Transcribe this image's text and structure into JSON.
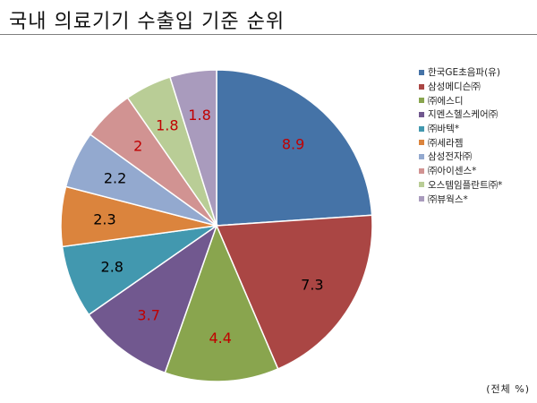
{
  "title": "국내 의료기기 수출입 기준 순위",
  "unit_note": "(전체 %)",
  "chart_data": {
    "type": "pie",
    "title": "",
    "categories": [
      "한국GE초음파(유)",
      "삼성메디슨㈜",
      "㈜에스디",
      "지멘스헬스케어㈜",
      "㈜바텍*",
      "㈜세라젬",
      "삼성전자㈜",
      "㈜아이센스*",
      "오스템임플란트㈜*",
      "㈜뷰웍스*"
    ],
    "values": [
      8.9,
      7.3,
      4.4,
      3.7,
      2.8,
      2.3,
      2.2,
      2,
      1.8,
      1.8
    ],
    "value_labels": [
      "8.9",
      "7.3",
      "4.4",
      "3.7",
      "2.8",
      "2.3",
      "2.2",
      "2",
      "1.8",
      "1.8"
    ],
    "colors": [
      "#4573A7",
      "#AA4644",
      "#89A54E",
      "#71588F",
      "#4298AF",
      "#DB843D",
      "#93A9CF",
      "#D19392",
      "#B9CD96",
      "#A99BBD"
    ],
    "label_colors": [
      "#c00000",
      "#000000",
      "#c00000",
      "#c00000",
      "#000000",
      "#000000",
      "#000000",
      "#c00000",
      "#c00000",
      "#c00000"
    ],
    "legend_position": "right"
  }
}
